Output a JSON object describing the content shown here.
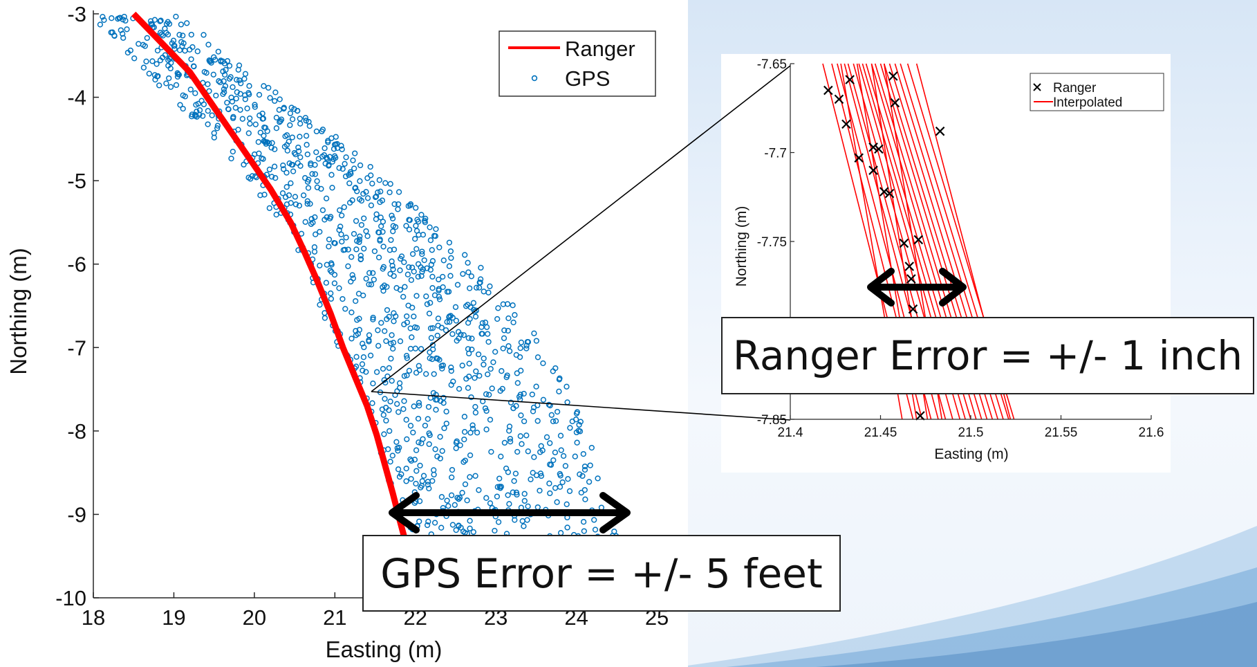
{
  "colors": {
    "ranger": "#ff0000",
    "gps": "#0072bd",
    "interpolated": "#ff0000",
    "marker": "#000000",
    "arrow": "#000000"
  },
  "callouts": {
    "gps": "GPS Error = +/- 5 feet",
    "ranger": "Ranger Error = +/- 1 inch"
  },
  "chart_data": [
    {
      "type": "scatter",
      "xlabel": "Easting (m)",
      "ylabel": "Northing (m)",
      "xlim": [
        18,
        25.3
      ],
      "ylim": [
        -10,
        -3
      ],
      "xticks": [
        18,
        19,
        20,
        21,
        22,
        23,
        24,
        25
      ],
      "yticks": [
        -3,
        -4,
        -5,
        -6,
        -7,
        -8,
        -9,
        -10
      ],
      "legend": {
        "position": "top-right",
        "entries": [
          "Ranger",
          "GPS"
        ]
      },
      "grid": false,
      "series": [
        {
          "name": "Ranger",
          "kind": "line",
          "x": [
            18.5,
            18.85,
            19.2,
            19.45,
            19.7,
            19.95,
            20.2,
            20.45,
            20.62,
            20.78,
            20.95,
            21.1,
            21.25,
            21.4,
            21.52,
            21.62,
            21.72,
            21.8,
            21.87
          ],
          "y": [
            -3.0,
            -3.35,
            -3.7,
            -4.05,
            -4.4,
            -4.75,
            -5.1,
            -5.5,
            -5.85,
            -6.2,
            -6.6,
            -7.0,
            -7.35,
            -7.7,
            -8.05,
            -8.4,
            -8.75,
            -9.05,
            -9.3
          ]
        },
        {
          "name": "GPS",
          "kind": "scatter-open-circle",
          "band_center_x": [
            17.95,
            18.45,
            18.9,
            19.35,
            19.75,
            20.15,
            20.55,
            20.85,
            21.15,
            21.45,
            21.7,
            21.9,
            22.1,
            22.3
          ],
          "band_center_y": [
            -3.0,
            -3.5,
            -4.0,
            -4.5,
            -5.0,
            -5.5,
            -6.0,
            -6.5,
            -7.0,
            -7.5,
            -8.0,
            -8.5,
            -9.0,
            -9.3
          ],
          "band_left_offset": [
            0.0,
            -0.05,
            0.05,
            0.15,
            0.2,
            0.15,
            0.1,
            -0.05,
            -0.1,
            -0.1,
            -0.2,
            -0.3,
            -0.3,
            -0.3
          ],
          "band_right_offset": [
            1.1,
            1.25,
            1.45,
            1.7,
            1.9,
            2.05,
            2.25,
            2.4,
            2.45,
            2.45,
            2.45,
            2.4,
            2.3,
            2.25
          ]
        }
      ]
    },
    {
      "type": "line",
      "xlabel": "Easting (m)",
      "ylabel": "Northing (m)",
      "xlim": [
        21.4,
        21.6
      ],
      "ylim": [
        -7.85,
        -7.65
      ],
      "xticks": [
        21.4,
        21.45,
        21.5,
        21.55,
        21.6
      ],
      "yticks": [
        -7.65,
        -7.7,
        -7.75,
        -7.8,
        -7.85
      ],
      "xtick_labels": [
        "21.4",
        "21.45",
        "21.5",
        "21.55",
        "21.6"
      ],
      "ytick_labels": [
        "-7.65",
        "-7.7",
        "-7.75",
        "",
        "-7.85"
      ],
      "legend": {
        "position": "top-right",
        "entries": [
          "Ranger",
          "Interpolated"
        ]
      },
      "grid": false,
      "series": [
        {
          "name": "Ranger",
          "kind": "x-marker",
          "x": [
            21.421,
            21.427,
            21.431,
            21.433,
            21.438,
            21.446,
            21.446,
            21.449,
            21.452,
            21.455,
            21.457,
            21.458,
            21.463,
            21.466,
            21.467,
            21.468,
            21.471,
            21.472,
            21.483
          ],
          "y": [
            -7.665,
            -7.67,
            -7.684,
            -7.659,
            -7.703,
            -7.697,
            -7.71,
            -7.698,
            -7.722,
            -7.723,
            -7.657,
            -7.672,
            -7.751,
            -7.764,
            -7.771,
            -7.788,
            -7.749,
            -7.848,
            -7.688
          ]
        },
        {
          "name": "Interpolated",
          "kind": "lines",
          "segments": [
            [
              21.418,
              -7.65,
              21.468,
              -7.85
            ],
            [
              21.423,
              -7.65,
              21.473,
              -7.85
            ],
            [
              21.426,
              -7.65,
              21.478,
              -7.85
            ],
            [
              21.43,
              -7.65,
              21.482,
              -7.85
            ],
            [
              21.432,
              -7.65,
              21.486,
              -7.85
            ],
            [
              21.435,
              -7.65,
              21.49,
              -7.85
            ],
            [
              21.438,
              -7.65,
              21.494,
              -7.85
            ],
            [
              21.44,
              -7.65,
              21.497,
              -7.85
            ],
            [
              21.442,
              -7.65,
              21.5,
              -7.85
            ],
            [
              21.445,
              -7.65,
              21.503,
              -7.85
            ],
            [
              21.447,
              -7.65,
              21.506,
              -7.85
            ],
            [
              21.45,
              -7.65,
              21.509,
              -7.85
            ],
            [
              21.452,
              -7.65,
              21.512,
              -7.85
            ],
            [
              21.455,
              -7.65,
              21.515,
              -7.85
            ],
            [
              21.458,
              -7.65,
              21.518,
              -7.85
            ],
            [
              21.461,
              -7.65,
              21.521,
              -7.85
            ],
            [
              21.465,
              -7.65,
              21.524,
              -7.85
            ],
            [
              21.47,
              -7.65,
              21.522,
              -7.85
            ],
            [
              21.437,
              -7.65,
              21.47,
              -7.85
            ],
            [
              21.445,
              -7.65,
              21.476,
              -7.85
            ],
            [
              21.428,
              -7.65,
              21.462,
              -7.85
            ],
            [
              21.452,
              -7.65,
              21.484,
              -7.85
            ]
          ]
        }
      ]
    }
  ]
}
